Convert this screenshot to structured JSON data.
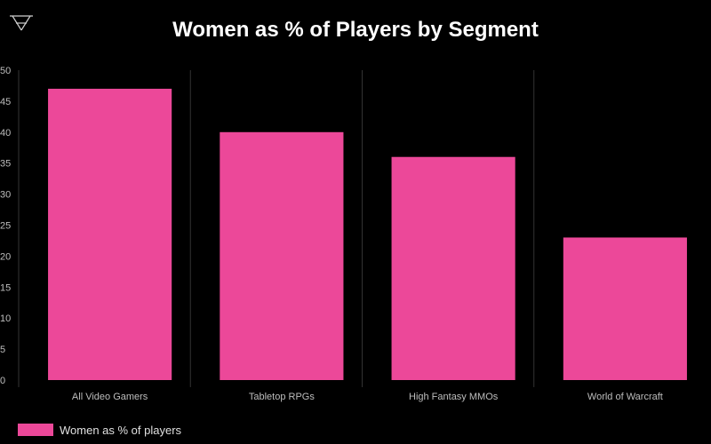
{
  "chart_data": {
    "type": "bar",
    "title": "Women as % of Players by Segment",
    "categories": [
      "All Video Gamers",
      "Tabletop RPGs",
      "High Fantasy MMOs",
      "World of Warcraft"
    ],
    "series": [
      {
        "name": "Women as % of players",
        "values": [
          47,
          40,
          36,
          23
        ]
      }
    ],
    "xlabel": "",
    "ylabel": "",
    "ylim": [
      0,
      50
    ],
    "yticks": [
      0,
      5,
      10,
      15,
      20,
      25,
      30,
      35,
      40,
      45,
      50
    ],
    "grid": "vertical-separators",
    "legend_position": "bottom-left"
  },
  "colors": {
    "background": "#000000",
    "bar": "#ec4899",
    "text": "#ffffff",
    "axis_text": "#bdbdbd",
    "gridline": "#333333"
  },
  "icons": {
    "logo": "inverted-triangle-logo-icon"
  }
}
